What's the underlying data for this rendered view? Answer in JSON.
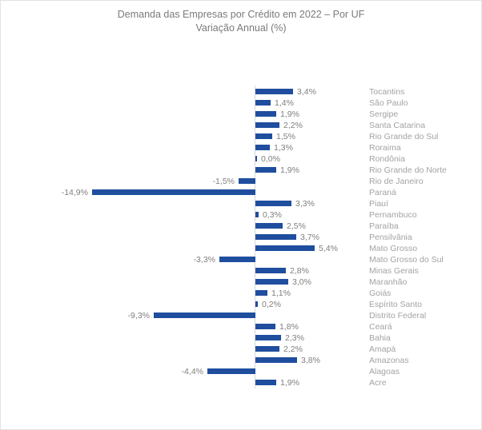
{
  "title": {
    "line1": "Demanda das Empresas por Crédito em 2022 – Por UF",
    "line2": "Variação Annual (%)"
  },
  "colors": {
    "bar": "#1F4E9E",
    "axis_line": "#D9D9D9",
    "value_label": "#7F7F7F",
    "category_label": "#A3A3A3",
    "title": "#7A7A7A",
    "background": "#FFFFFF",
    "border": "#E3E3E3"
  },
  "chart_data": {
    "type": "bar",
    "orientation": "horizontal",
    "title": "Demanda das Empresas por Crédito em 2022 – Por UF",
    "subtitle": "Variação Annual (%)",
    "value_format": "pt-BR decimal comma, one decimal, percent suffix",
    "grid": false,
    "legend": false,
    "category_labels_position": "right",
    "xlim": [
      -16,
      6
    ],
    "categories": [
      "Tocantins",
      "São Paulo",
      "Sergipe",
      "Santa Catarina",
      "Rio Grande do Sul",
      "Roraima",
      "Rondônia",
      "Rio Grande do Norte",
      "Rio de Janeiro",
      "Paraná",
      "Piauí",
      "Pernambuco",
      "Paraíba",
      "Pensilvânia",
      "Mato Grosso",
      "Mato Grosso do Sul",
      "Minas Gerais",
      "Maranhão",
      "Goiás",
      "Espírito Santo",
      "Distrito Federal",
      "Ceará",
      "Bahia",
      "Amapá",
      "Amazonas",
      "Alagoas",
      "Acre"
    ],
    "values": [
      3.4,
      1.4,
      1.9,
      2.2,
      1.5,
      1.3,
      0.0,
      1.9,
      -1.5,
      -14.9,
      3.3,
      0.3,
      2.5,
      3.7,
      5.4,
      -3.3,
      2.8,
      3.0,
      1.1,
      0.2,
      -9.3,
      1.8,
      2.3,
      2.2,
      3.8,
      -4.4,
      1.9
    ]
  }
}
